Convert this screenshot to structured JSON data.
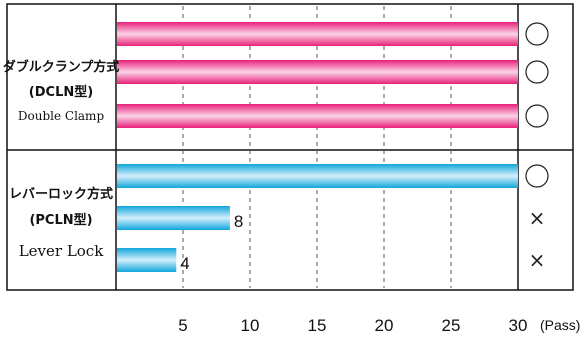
{
  "chart_data": {
    "type": "bar",
    "orientation": "horizontal",
    "groups": [
      {
        "label_line1": "ダブルクランプ方式",
        "label_line2": "(DCLN型)",
        "label_line3": "Double Clamp",
        "color": "magenta",
        "bars": [
          {
            "value": 30,
            "value_label": "",
            "result": "○"
          },
          {
            "value": 30,
            "value_label": "",
            "result": "○"
          },
          {
            "value": 30,
            "value_label": "",
            "result": "○"
          }
        ]
      },
      {
        "label_line1": "レバーロック方式",
        "label_line2": "(PCLN型)",
        "label_line3": "Lever Lock",
        "color": "cyan",
        "bars": [
          {
            "value": 30,
            "value_label": "",
            "result": "○"
          },
          {
            "value": 8.5,
            "value_label": "8",
            "result": "×"
          },
          {
            "value": 4.5,
            "value_label": "4",
            "result": "×"
          }
        ]
      }
    ],
    "xlim": [
      0,
      30
    ],
    "x_ticks": [
      "5",
      "10",
      "15",
      "20",
      "25",
      "30"
    ],
    "x_unit": "(Pass)",
    "grid": "vertical dashed",
    "colors": {
      "magenta_edge": "#e8207a",
      "magenta_light": "#fbd3e6",
      "cyan_edge": "#12a6dc",
      "cyan_light": "#d3effb"
    }
  }
}
